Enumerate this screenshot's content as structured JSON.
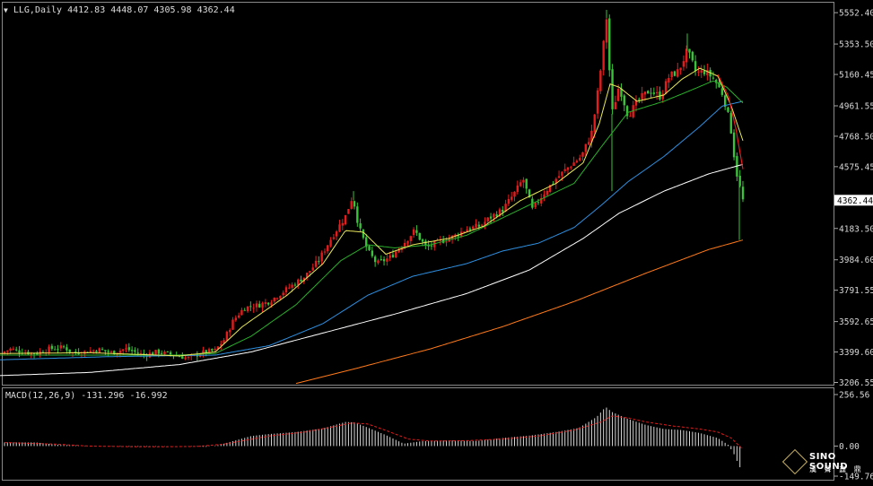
{
  "header": {
    "symbol": "LLG,Daily",
    "ohlc": "4412.83 4448.07 4305.98 4362.44"
  },
  "macd_header": {
    "label": "MACD(12,26,9) -131.296 -16.992"
  },
  "logo": {
    "name": "SINO SOUND",
    "subtitle": "漢 聲 鑫 鼎"
  },
  "colors": {
    "background": "#000000",
    "bull": "#e41c1c",
    "bear": "#3ac23a",
    "ma_fast": "#e9e95a",
    "ma_mid": "#2bb02b",
    "ma_blue": "#2e8fe0",
    "ma_white": "#ffffff",
    "ma_orange": "#ff7a1a",
    "ma_red": "#e41c1c",
    "macd_hist": "#d9d9d9",
    "macd_signal": "#e41c1c"
  },
  "chart_data": [
    {
      "type": "candlestick",
      "series_name": "LLG,Daily",
      "last_price": 4362.44,
      "y_ticks": [
        5552.4,
        5353.5,
        5160.45,
        4961.55,
        4768.5,
        4575.45,
        4362.44,
        4183.5,
        3984.6,
        3791.55,
        3592.65,
        3399.6,
        3206.55
      ],
      "y_range": [
        3198,
        5610
      ],
      "count": 250,
      "close_anchors": [
        [
          0,
          3390
        ],
        [
          12,
          3420
        ],
        [
          25,
          3400
        ],
        [
          40,
          3390
        ],
        [
          55,
          3420
        ],
        [
          72,
          3430
        ],
        [
          80,
          3395
        ],
        [
          95,
          3400
        ],
        [
          110,
          3415
        ],
        [
          125,
          3395
        ],
        [
          140,
          3420
        ],
        [
          160,
          3380
        ],
        [
          175,
          3400
        ],
        [
          195,
          3380
        ],
        [
          210,
          3360
        ],
        [
          225,
          3395
        ],
        [
          240,
          3410
        ],
        [
          250,
          3480
        ],
        [
          260,
          3600
        ],
        [
          272,
          3680
        ],
        [
          290,
          3700
        ],
        [
          300,
          3720
        ],
        [
          320,
          3800
        ],
        [
          340,
          3880
        ],
        [
          355,
          3980
        ],
        [
          370,
          4130
        ],
        [
          385,
          4260
        ],
        [
          393,
          4390
        ],
        [
          400,
          4190
        ],
        [
          410,
          4040
        ],
        [
          420,
          3960
        ],
        [
          435,
          4000
        ],
        [
          450,
          4090
        ],
        [
          462,
          4170
        ],
        [
          475,
          4060
        ],
        [
          490,
          4100
        ],
        [
          505,
          4130
        ],
        [
          520,
          4180
        ],
        [
          535,
          4200
        ],
        [
          548,
          4260
        ],
        [
          560,
          4300
        ],
        [
          575,
          4420
        ],
        [
          583,
          4500
        ],
        [
          593,
          4300
        ],
        [
          605,
          4400
        ],
        [
          620,
          4500
        ],
        [
          635,
          4580
        ],
        [
          648,
          4640
        ],
        [
          660,
          4800
        ],
        [
          668,
          5120
        ],
        [
          676,
          5520
        ],
        [
          682,
          4910
        ],
        [
          690,
          5090
        ],
        [
          700,
          4900
        ],
        [
          712,
          5000
        ],
        [
          724,
          5060
        ],
        [
          736,
          5020
        ],
        [
          746,
          5150
        ],
        [
          756,
          5180
        ],
        [
          766,
          5310
        ],
        [
          776,
          5170
        ],
        [
          786,
          5180
        ],
        [
          796,
          5130
        ],
        [
          806,
          5030
        ],
        [
          814,
          4840
        ],
        [
          820,
          4560
        ],
        [
          828,
          4362
        ]
      ],
      "ma_fast_anchors": [
        [
          0,
          3390
        ],
        [
          100,
          3395
        ],
        [
          200,
          3375
        ],
        [
          240,
          3400
        ],
        [
          270,
          3560
        ],
        [
          320,
          3760
        ],
        [
          360,
          3960
        ],
        [
          385,
          4170
        ],
        [
          405,
          4160
        ],
        [
          430,
          4020
        ],
        [
          460,
          4080
        ],
        [
          500,
          4120
        ],
        [
          540,
          4200
        ],
        [
          580,
          4360
        ],
        [
          620,
          4470
        ],
        [
          650,
          4600
        ],
        [
          668,
          4850
        ],
        [
          680,
          5100
        ],
        [
          690,
          5080
        ],
        [
          710,
          4990
        ],
        [
          740,
          5030
        ],
        [
          760,
          5130
        ],
        [
          780,
          5200
        ],
        [
          800,
          5150
        ],
        [
          815,
          4960
        ],
        [
          828,
          4740
        ]
      ],
      "ma_mid_anchors": [
        [
          0,
          3380
        ],
        [
          200,
          3380
        ],
        [
          240,
          3390
        ],
        [
          280,
          3500
        ],
        [
          330,
          3700
        ],
        [
          380,
          3980
        ],
        [
          410,
          4080
        ],
        [
          440,
          4060
        ],
        [
          480,
          4080
        ],
        [
          520,
          4140
        ],
        [
          560,
          4250
        ],
        [
          600,
          4360
        ],
        [
          640,
          4470
        ],
        [
          670,
          4700
        ],
        [
          700,
          4920
        ],
        [
          740,
          4990
        ],
        [
          770,
          5060
        ],
        [
          795,
          5120
        ],
        [
          810,
          5080
        ],
        [
          828,
          4980
        ]
      ],
      "ma_blue_anchors": [
        [
          0,
          3350
        ],
        [
          120,
          3370
        ],
        [
          240,
          3380
        ],
        [
          300,
          3440
        ],
        [
          360,
          3580
        ],
        [
          410,
          3760
        ],
        [
          460,
          3880
        ],
        [
          520,
          3960
        ],
        [
          560,
          4040
        ],
        [
          600,
          4090
        ],
        [
          640,
          4190
        ],
        [
          670,
          4330
        ],
        [
          700,
          4480
        ],
        [
          740,
          4640
        ],
        [
          780,
          4830
        ],
        [
          805,
          4960
        ],
        [
          828,
          4990
        ]
      ],
      "ma_white_anchors": [
        [
          0,
          3250
        ],
        [
          100,
          3270
        ],
        [
          200,
          3320
        ],
        [
          280,
          3400
        ],
        [
          360,
          3520
        ],
        [
          440,
          3640
        ],
        [
          520,
          3770
        ],
        [
          590,
          3920
        ],
        [
          650,
          4120
        ],
        [
          690,
          4280
        ],
        [
          740,
          4420
        ],
        [
          790,
          4530
        ],
        [
          828,
          4590
        ]
      ],
      "ma_orange_anchors": [
        [
          330,
          3200
        ],
        [
          400,
          3300
        ],
        [
          480,
          3420
        ],
        [
          560,
          3560
        ],
        [
          640,
          3720
        ],
        [
          720,
          3900
        ],
        [
          790,
          4050
        ],
        [
          828,
          4110
        ]
      ]
    },
    {
      "type": "macd",
      "series_name": "MACD(12,26,9)",
      "macd_value": -131.296,
      "signal_value": -16.992,
      "y_ticks": [
        256.56,
        0.0,
        -149.765
      ],
      "y_range": [
        -149.765,
        256.56
      ],
      "hist_anchors": [
        [
          0,
          18
        ],
        [
          40,
          18
        ],
        [
          65,
          6
        ],
        [
          100,
          1
        ],
        [
          140,
          -3
        ],
        [
          170,
          -2
        ],
        [
          200,
          0
        ],
        [
          230,
          -4
        ],
        [
          245,
          6
        ],
        [
          260,
          25
        ],
        [
          280,
          50
        ],
        [
          300,
          60
        ],
        [
          330,
          70
        ],
        [
          360,
          88
        ],
        [
          385,
          120
        ],
        [
          395,
          118
        ],
        [
          410,
          92
        ],
        [
          430,
          55
        ],
        [
          450,
          12
        ],
        [
          470,
          24
        ],
        [
          500,
          28
        ],
        [
          530,
          25
        ],
        [
          560,
          40
        ],
        [
          590,
          52
        ],
        [
          620,
          70
        ],
        [
          645,
          90
        ],
        [
          665,
          145
        ],
        [
          675,
          195
        ],
        [
          682,
          170
        ],
        [
          700,
          135
        ],
        [
          720,
          105
        ],
        [
          740,
          85
        ],
        [
          760,
          80
        ],
        [
          780,
          65
        ],
        [
          800,
          40
        ],
        [
          812,
          5
        ],
        [
          818,
          -40
        ],
        [
          824,
          -100
        ],
        [
          828,
          -131
        ]
      ],
      "signal_anchors": [
        [
          0,
          18
        ],
        [
          60,
          10
        ],
        [
          100,
          0
        ],
        [
          160,
          -4
        ],
        [
          220,
          -2
        ],
        [
          250,
          10
        ],
        [
          300,
          50
        ],
        [
          340,
          70
        ],
        [
          370,
          95
        ],
        [
          392,
          115
        ],
        [
          410,
          110
        ],
        [
          430,
          78
        ],
        [
          455,
          35
        ],
        [
          480,
          25
        ],
        [
          520,
          27
        ],
        [
          560,
          35
        ],
        [
          600,
          50
        ],
        [
          640,
          80
        ],
        [
          670,
          120
        ],
        [
          682,
          150
        ],
        [
          700,
          140
        ],
        [
          720,
          120
        ],
        [
          750,
          100
        ],
        [
          780,
          85
        ],
        [
          800,
          70
        ],
        [
          815,
          40
        ],
        [
          828,
          -17
        ]
      ]
    }
  ]
}
